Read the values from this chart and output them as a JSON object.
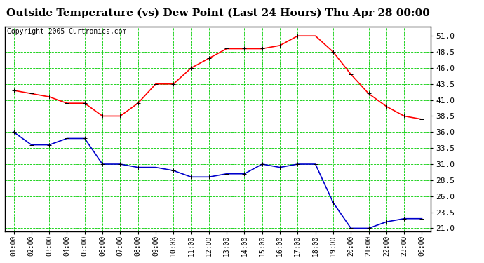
{
  "title": "Outside Temperature (vs) Dew Point (Last 24 Hours) Thu Apr 28 00:00",
  "copyright": "Copyright 2005 Curtronics.com",
  "x_labels": [
    "01:00",
    "02:00",
    "03:00",
    "04:00",
    "05:00",
    "06:00",
    "07:00",
    "08:00",
    "09:00",
    "10:00",
    "11:00",
    "12:00",
    "13:00",
    "14:00",
    "15:00",
    "16:00",
    "17:00",
    "18:00",
    "19:00",
    "20:00",
    "21:00",
    "22:00",
    "23:00",
    "00:00"
  ],
  "temp_values": [
    42.5,
    42.0,
    41.5,
    40.5,
    40.5,
    38.5,
    38.5,
    40.5,
    43.5,
    43.5,
    46.0,
    47.5,
    49.0,
    49.0,
    49.0,
    49.5,
    51.0,
    51.0,
    48.5,
    45.0,
    42.0,
    40.0,
    38.5,
    38.0
  ],
  "dew_values": [
    36.0,
    34.0,
    34.0,
    35.0,
    35.0,
    31.0,
    31.0,
    30.5,
    30.5,
    30.0,
    29.0,
    29.0,
    29.5,
    29.5,
    31.0,
    30.5,
    31.0,
    31.0,
    25.0,
    21.0,
    21.0,
    22.0,
    22.5,
    22.5
  ],
  "temp_color": "#ff0000",
  "dew_color": "#0000cc",
  "bg_color": "#ffffff",
  "plot_bg_color": "#ffffff",
  "grid_color": "#00cc00",
  "title_fontsize": 11,
  "copyright_fontsize": 7,
  "ylim": [
    20.5,
    52.5
  ],
  "yticks": [
    21.0,
    23.5,
    26.0,
    28.5,
    31.0,
    33.5,
    36.0,
    38.5,
    41.0,
    43.5,
    46.0,
    48.5,
    51.0
  ],
  "marker": "+",
  "markersize": 5,
  "linewidth": 1.2
}
